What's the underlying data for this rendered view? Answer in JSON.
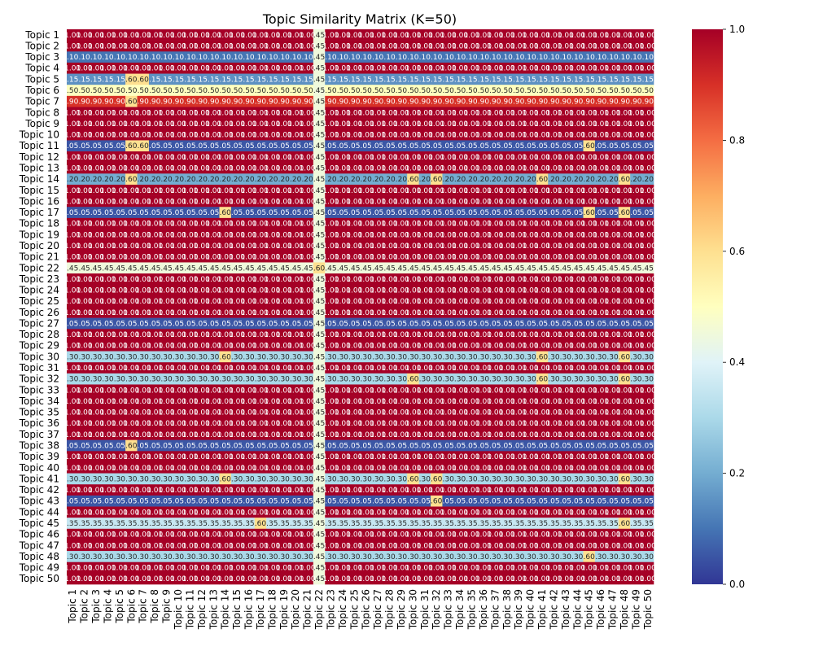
{
  "chart_data": {
    "type": "heatmap",
    "title": "Topic Similarity Matrix (K=50)",
    "xlabel": "",
    "ylabel": "",
    "n": 50,
    "label_prefix": "Topic ",
    "vmin": 0.0,
    "vmax": 1.0,
    "colormap": "RdYlBu_r",
    "colorbar_ticks": [
      "0.0",
      "0.2",
      "0.4",
      "0.6",
      "0.8",
      "1.0"
    ],
    "annotation_format": "2 decimals, leading zero dropped",
    "row_levels": [
      1,
      1,
      0.1,
      1,
      0.15,
      0.5,
      0.9,
      1,
      1,
      1,
      0.05,
      1,
      1,
      0.2,
      1,
      1,
      0.05,
      1,
      1,
      1,
      1,
      0.45,
      1,
      1,
      1,
      1,
      0.05,
      1,
      1,
      0.3,
      1,
      0.3,
      1,
      1,
      1,
      1,
      1,
      0.05,
      1,
      1,
      0.3,
      1,
      0.05,
      1,
      0.35,
      1,
      1,
      0.3,
      1,
      1
    ],
    "column_22_value": 0.45,
    "peak_value": 0.6,
    "peaks": [
      [
        5,
        6
      ],
      [
        5,
        7
      ],
      [
        7,
        6
      ],
      [
        11,
        6
      ],
      [
        11,
        7
      ],
      [
        11,
        45
      ],
      [
        14,
        6
      ],
      [
        14,
        30
      ],
      [
        14,
        32
      ],
      [
        14,
        41
      ],
      [
        14,
        48
      ],
      [
        17,
        14
      ],
      [
        17,
        45
      ],
      [
        17,
        48
      ],
      [
        22,
        22
      ],
      [
        30,
        14
      ],
      [
        30,
        41
      ],
      [
        30,
        48
      ],
      [
        32,
        30
      ],
      [
        32,
        41
      ],
      [
        32,
        48
      ],
      [
        38,
        6
      ],
      [
        41,
        14
      ],
      [
        41,
        30
      ],
      [
        41,
        32
      ],
      [
        41,
        48
      ],
      [
        43,
        32
      ],
      [
        45,
        17
      ],
      [
        45,
        48
      ],
      [
        48,
        45
      ]
    ]
  }
}
